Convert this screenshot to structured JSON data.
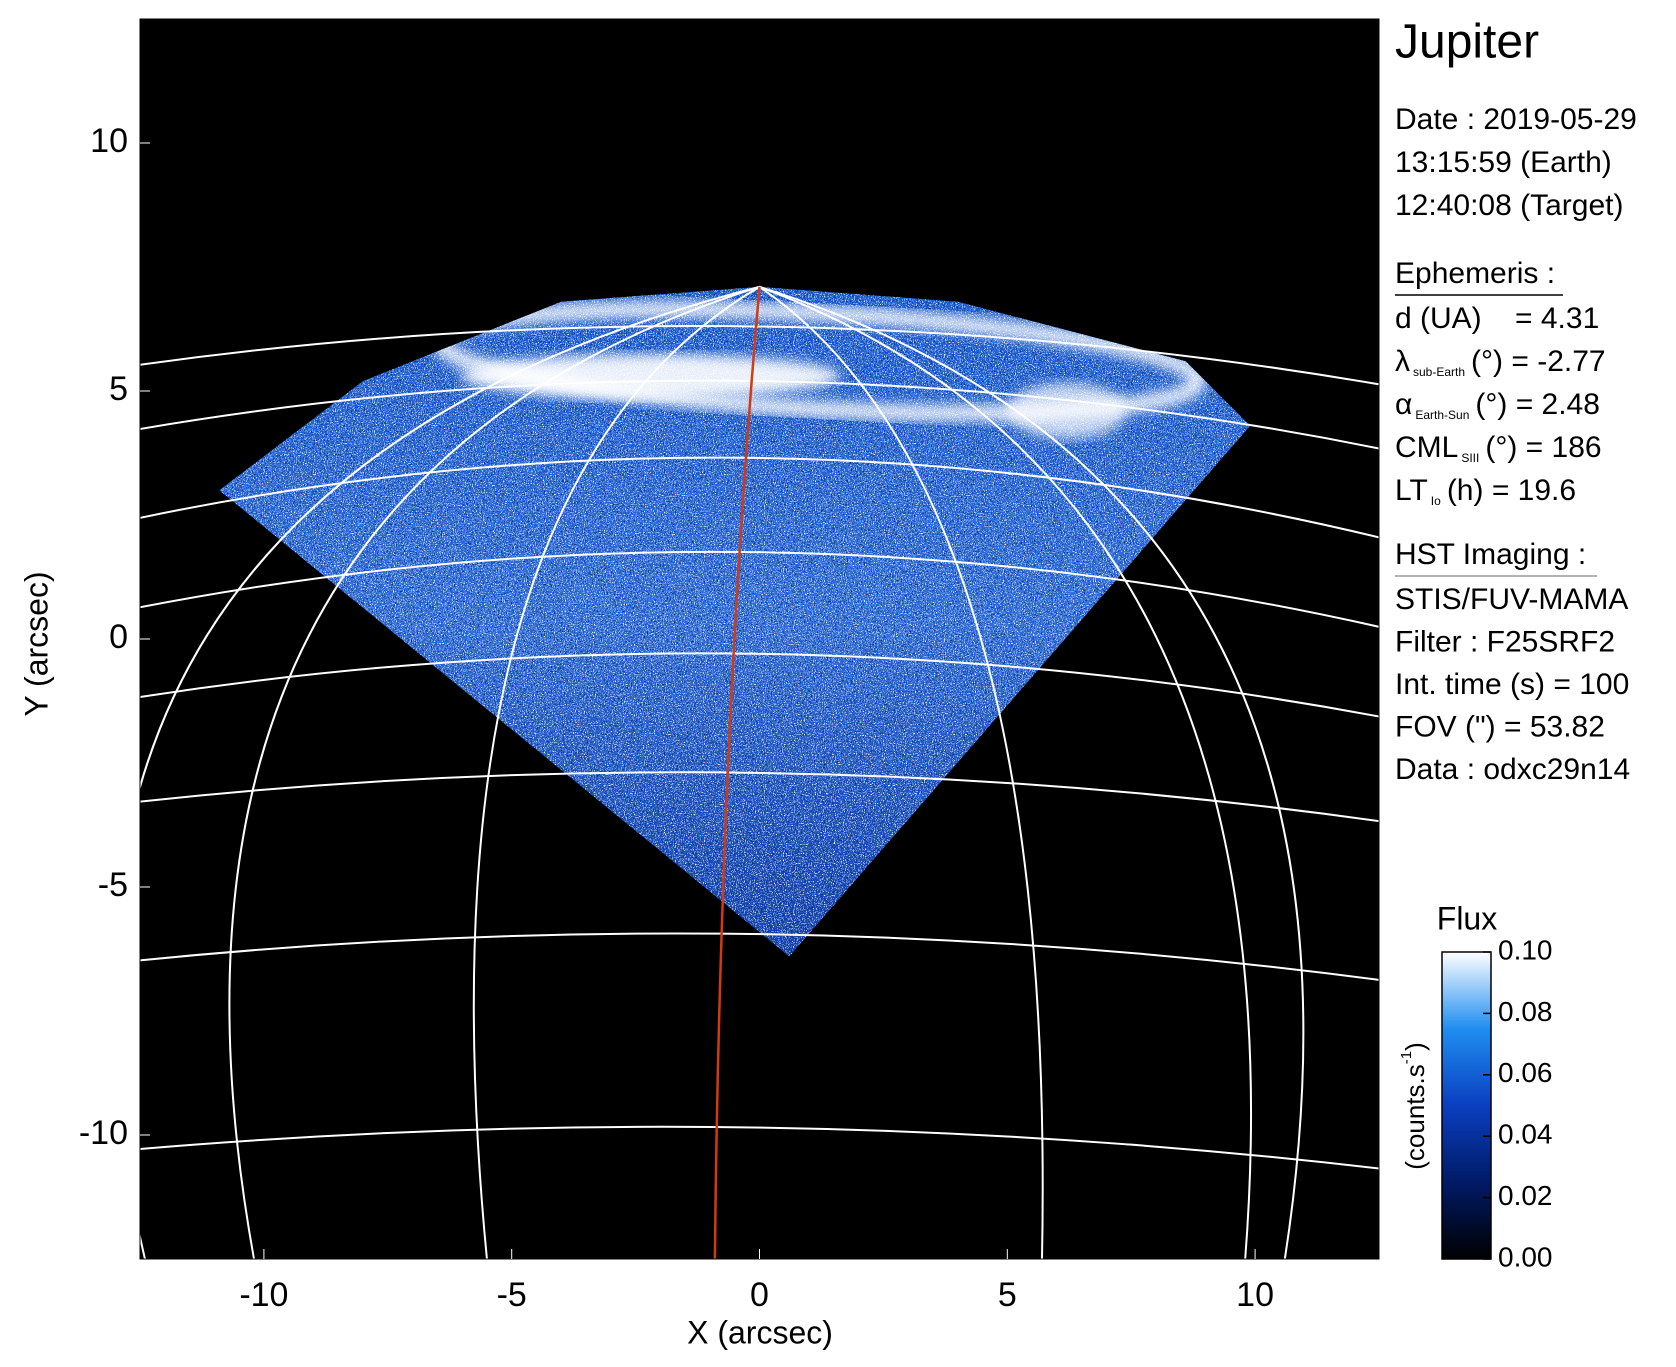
{
  "chart_data": {
    "type": "image",
    "title": "Jupiter",
    "xlabel": "X (arcsec)",
    "ylabel": "Y (arcsec)",
    "xlim": [
      -12.5,
      12.5
    ],
    "ylim": [
      -12.5,
      12.5
    ],
    "xticks": [
      -10,
      -5,
      0,
      5,
      10
    ],
    "yticks": [
      -10,
      -5,
      0,
      5,
      10
    ],
    "colorbar": {
      "title": "Flux",
      "unit": "(counts.s",
      "unit_exp": "-1",
      "unit_close": ")",
      "lim": [
        0,
        0.1
      ],
      "ticks": [
        {
          "value": 0,
          "label": "0.00"
        },
        0.02,
        0.04,
        0.06,
        0.08,
        {
          "value": 0.1,
          "label": "0.10"
        }
      ],
      "colors": [
        "#000000",
        "#001a66",
        "#0a3fc0",
        "#1f8ef0",
        "#ffffff"
      ]
    },
    "info": {
      "date": [
        "Date : 2019-05-29",
        "13:15:59 (Earth)",
        "12:40:08 (Target)"
      ],
      "ephemeris_title": "Ephemeris :",
      "ephemeris": [
        {
          "symbol": "d (UA)    = 4.31"
        },
        {
          "symbol": "λ",
          "sub": "sub-Earth",
          "text": "(°) = -2.77"
        },
        {
          "symbol": "α",
          "sub": "Earth-Sun",
          "text": "(°) = 2.48"
        },
        {
          "symbol": "CML",
          "sub": "SIII",
          "text": "(°) = 186"
        },
        {
          "symbol": "LT",
          "sub": "Io",
          "text": "(h) = 19.6"
        }
      ],
      "imaging_title": "HST Imaging :",
      "imaging": [
        "STIS/FUV-MAMA",
        "Filter : F25SRF2",
        "Int. time (s) = 100",
        "FOV (\") = 53.82",
        "Data : odxc29n14"
      ]
    }
  }
}
